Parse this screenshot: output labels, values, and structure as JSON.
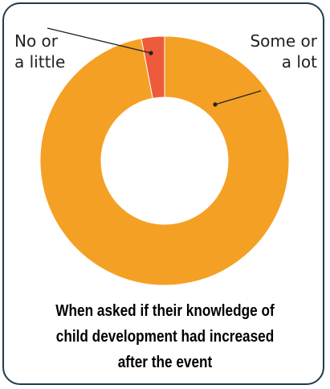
{
  "chart_data": {
    "type": "pie",
    "variant": "doughnut",
    "categories": [
      "Some or a lot",
      "No or a little"
    ],
    "values": [
      97,
      3
    ],
    "colors": {
      "Some or a lot": "#F4A024",
      "No or a little": "#EE5B3A"
    },
    "labels": {
      "left_line1": "No or",
      "left_line2": "a little",
      "right_line1": "Some or",
      "right_line2": "a lot"
    },
    "caption": {
      "line1": "When asked if their knowledge of",
      "line2": "child development had increased",
      "line3": "after the event"
    }
  },
  "colors": {
    "border": "#1F3B4D",
    "leader_line": "#222222"
  }
}
